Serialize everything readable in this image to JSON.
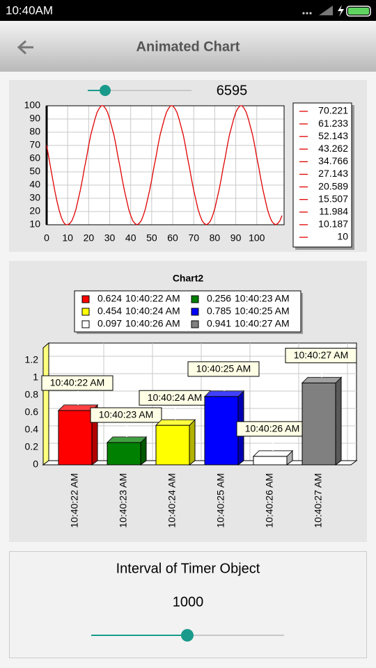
{
  "status_bar": {
    "time": "10:40AM"
  },
  "app_bar": {
    "title": "Animated Chart"
  },
  "line_slider_value": 6595,
  "chart_data": [
    {
      "type": "line",
      "color": "#e00000",
      "grid": true,
      "x": [
        0,
        1,
        2,
        3,
        4,
        5,
        6,
        7,
        8,
        9,
        10,
        11,
        12,
        13,
        14,
        15,
        16,
        17,
        18,
        19,
        20,
        21,
        22,
        23,
        24,
        25,
        26,
        27,
        28,
        29,
        30,
        31,
        32,
        33,
        34,
        35,
        36,
        37,
        38,
        39,
        40,
        41,
        42,
        43,
        44,
        45,
        46,
        47,
        48,
        49,
        50,
        51,
        52,
        53,
        54,
        55,
        56,
        57,
        58,
        59,
        60,
        61,
        62,
        63,
        64,
        65,
        66,
        67,
        68,
        69,
        70,
        71,
        72,
        73,
        74,
        75,
        76,
        77,
        78,
        79,
        80,
        81,
        82,
        83,
        84,
        85,
        86,
        87,
        88,
        89,
        90,
        91,
        92,
        93,
        94,
        95,
        96,
        97,
        98,
        99,
        100,
        101,
        102,
        103,
        104,
        105,
        106,
        107,
        108,
        109,
        110,
        111,
        112
      ],
      "values": [
        70.221,
        61.233,
        52.143,
        43.262,
        34.766,
        27.143,
        20.589,
        15.507,
        11.984,
        10.187,
        10,
        11,
        13,
        17,
        22,
        29,
        36,
        44,
        53,
        61,
        70,
        78,
        84,
        90,
        95,
        98,
        100,
        100,
        98,
        95,
        90,
        84,
        78,
        70,
        61,
        53,
        44,
        36,
        29,
        22,
        17,
        13,
        11,
        10,
        11,
        13,
        17,
        22,
        29,
        36,
        44,
        53,
        61,
        70,
        78,
        84,
        90,
        95,
        98,
        100,
        100,
        98,
        95,
        90,
        84,
        78,
        70,
        61,
        53,
        44,
        36,
        29,
        22,
        17,
        13,
        11,
        10,
        11,
        13,
        17,
        22,
        29,
        36,
        44,
        53,
        61,
        70,
        78,
        84,
        90,
        95,
        98,
        100,
        100,
        98,
        95,
        90,
        84,
        78,
        70,
        61,
        53,
        44,
        36,
        29,
        22,
        17,
        13,
        11,
        10,
        11,
        13,
        17
      ],
      "xlim": [
        0,
        113
      ],
      "xticks": [
        0,
        10,
        20,
        30,
        40,
        50,
        60,
        70,
        80,
        90,
        100
      ],
      "ylim": [
        10,
        100
      ],
      "yticks": [
        10,
        20,
        30,
        40,
        50,
        60,
        70,
        80,
        90,
        100
      ]
    },
    {
      "type": "bar",
      "title": "Chart2",
      "grid": true,
      "categories": [
        "10:40:22 AM",
        "10:40:23 AM",
        "10:40:24 AM",
        "10:40:25 AM",
        "10:40:26 AM",
        "10:40:27 AM"
      ],
      "values": [
        0.624,
        0.256,
        0.454,
        0.785,
        0.097,
        0.941
      ],
      "colors": [
        "#ff0000",
        "#008000",
        "#ffff00",
        "#0000ff",
        "#ffffff",
        "#808080"
      ],
      "ylim": [
        0,
        1.4
      ],
      "yticks": [
        0,
        0.2,
        0.4,
        0.6,
        0.8,
        1,
        1.2
      ]
    }
  ],
  "timer_panel": {
    "label": "Interval of Timer Object",
    "value": 1000
  }
}
